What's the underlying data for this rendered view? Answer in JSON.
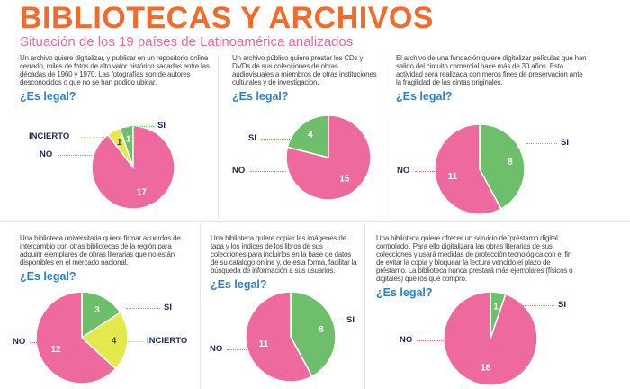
{
  "header": {
    "title": "BIBLIOTECAS Y ARCHIVOS",
    "subtitle": "Situación de los 19 países de Latinoamérica analizados"
  },
  "colors": {
    "si": "#6dbf6b",
    "incierto": "#e3e94a",
    "no": "#ee6a9e"
  },
  "chart_data": [
    {
      "type": "pie",
      "description": "Un archivo quiere digitalizar, y publicar en un repositorio online cerrado, miles de fotos de alto valor histórico sacadas entre las décadas de 1960 y 1970. Las fotografías son de autores desconocidos o que no se han podido ubicar.",
      "question": "¿Es legal?",
      "slices": [
        {
          "label": "SI",
          "value": 1
        },
        {
          "label": "INCIERTO",
          "value": 1
        },
        {
          "label": "NO",
          "value": 17
        }
      ]
    },
    {
      "type": "pie",
      "description": "Un archivo público quiere prestar los CDs y DVDs de sus colecciones de obras audiovisuales a miembros de otras instituciones culturales y de investigacion.",
      "question": "¿Es legal?",
      "slices": [
        {
          "label": "SI",
          "value": 4
        },
        {
          "label": "NO",
          "value": 15
        }
      ]
    },
    {
      "type": "pie",
      "description": "El archivo de una fundación quiere digitalizar películas que han salido del circuito comercial hace más de 30 años. Esta actividad será realizada con meros fines de preservación ante la fragilidad de las cintas originales.",
      "question": "¿Es legal?",
      "slices": [
        {
          "label": "SI",
          "value": 8
        },
        {
          "label": "NO",
          "value": 11
        }
      ]
    },
    {
      "type": "pie",
      "description": "Una biblioteca universitaria quiere firmar acuerdos de intercambio con otras bibliotecas de la región para adquirir ejemplares de obras literarias que no están disponibles en el mercado nacional.",
      "question": "¿Es legal?",
      "slices": [
        {
          "label": "SI",
          "value": 3
        },
        {
          "label": "INCIERTO",
          "value": 4
        },
        {
          "label": "NO",
          "value": 12
        }
      ]
    },
    {
      "type": "pie",
      "description": "Una biblioteca quiere copiar las imágenes de tapa y los índices de los libros de sus colecciones para incluirlos en la base de datos de su catalogo online y, de esta forma, facilitar la búsqueda de información a sus usuarios.",
      "question": "¿Es legal?",
      "slices": [
        {
          "label": "SI",
          "value": 8
        },
        {
          "label": "NO",
          "value": 11
        }
      ]
    },
    {
      "type": "pie",
      "description": "Una biblioteca quiere ofrecer un servicio de 'préstamo digital controlado'. Para ello digitalizará las obras literarias de sus colecciones y usará medidas de protección tecnológica con el fin de evitar la copia y bloquear la lectura vencido el plazo de préstamo. La biblioteca nunca prestará más ejemplares (físicos o digitales) que los que compró.",
      "question": "¿Es legal?",
      "slices": [
        {
          "label": "SI",
          "value": 1
        },
        {
          "label": "NO",
          "value": 18
        }
      ]
    }
  ]
}
